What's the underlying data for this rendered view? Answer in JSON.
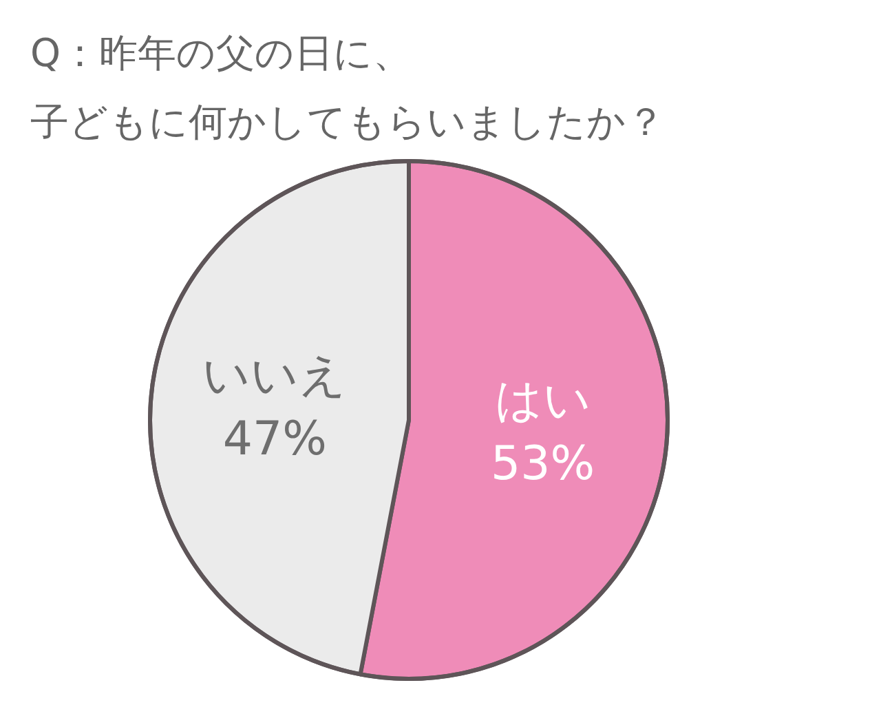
{
  "chart_data": {
    "type": "pie",
    "title": "Q：昨年の父の日に、",
    "subtitle": "子どもに何かしてもらいましたか？",
    "categories": [
      "はい",
      "いいえ"
    ],
    "values": [
      53,
      47
    ],
    "value_labels": [
      "53%",
      "47%"
    ],
    "colors": [
      "#ef8cb8",
      "#ebebeb"
    ]
  }
}
